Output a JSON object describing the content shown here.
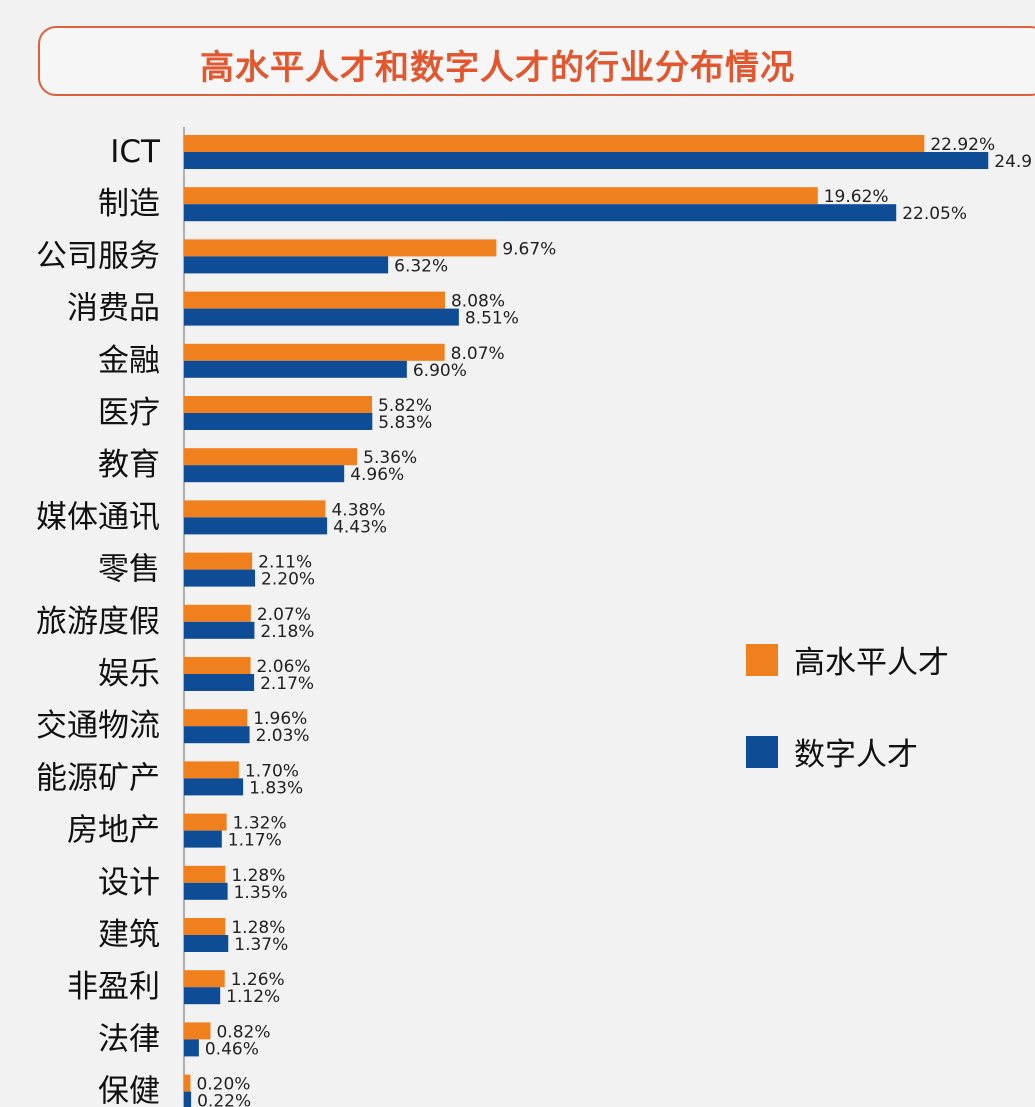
{
  "title": "高水平人才和数字人才的行业分布情况",
  "legend": [
    {
      "label": "高水平人才",
      "color": "#f07f1d"
    },
    {
      "label": "数字人才",
      "color": "#0f4c96"
    }
  ],
  "chart_data": {
    "type": "bar",
    "orientation": "horizontal",
    "title": "高水平人才和数字人才的行业分布情况",
    "categories": [
      "ICT",
      "制造",
      "公司服务",
      "消费品",
      "金融",
      "医疗",
      "教育",
      "媒体通讯",
      "零售",
      "旅游度假",
      "娱乐",
      "交通物流",
      "能源矿产",
      "房地产",
      "设计",
      "建筑",
      "非盈利",
      "法律",
      "保健"
    ],
    "series": [
      {
        "name": "高水平人才",
        "color": "#f07f1d",
        "values": [
          22.92,
          19.62,
          9.67,
          8.08,
          8.07,
          5.82,
          5.36,
          4.38,
          2.11,
          2.07,
          2.06,
          1.96,
          1.7,
          1.32,
          1.28,
          1.28,
          1.26,
          0.82,
          0.2
        ],
        "labels": [
          "22.92%",
          "19.62%",
          "9.67%",
          "8.08%",
          "8.07%",
          "5.82%",
          "5.36%",
          "4.38%",
          "2.11%",
          "2.07%",
          "2.06%",
          "1.96%",
          "1.70%",
          "1.32%",
          "1.28%",
          "1.28%",
          "1.26%",
          "0.82%",
          "0.20%"
        ]
      },
      {
        "name": "数字人才",
        "color": "#0f4c96",
        "values": [
          24.9,
          22.05,
          6.32,
          8.51,
          6.9,
          5.83,
          4.96,
          4.43,
          2.2,
          2.18,
          2.17,
          2.03,
          1.83,
          1.17,
          1.35,
          1.37,
          1.12,
          0.46,
          0.22
        ],
        "labels": [
          "24.9",
          "22.05%",
          "6.32%",
          "8.51%",
          "6.90%",
          "5.83%",
          "4.96%",
          "4.43%",
          "2.20%",
          "2.18%",
          "2.17%",
          "2.03%",
          "1.83%",
          "1.17%",
          "1.35%",
          "1.37%",
          "1.12%",
          "0.46%",
          "0.22%"
        ]
      }
    ],
    "legend_position": "right",
    "grid": false
  }
}
